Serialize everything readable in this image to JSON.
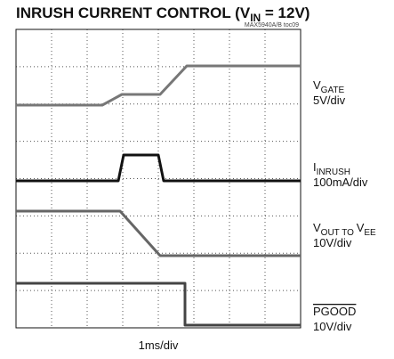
{
  "title": {
    "main": "INRUSH CURRENT CONTROL (V",
    "sub": "IN",
    "tail": " = 12V)"
  },
  "figure_id": "MAX5940A/B toc09",
  "traces": [
    {
      "label": [
        {
          "text": "V",
          "sub": false
        },
        {
          "text": "GATE",
          "sub": true
        }
      ],
      "scale": "5V/div"
    },
    {
      "label": [
        {
          "text": "I",
          "sub": false
        },
        {
          "text": "INRUSH",
          "sub": true
        }
      ],
      "scale": "100mA/div"
    },
    {
      "label": [
        {
          "text": "V",
          "sub": false
        },
        {
          "text": "OUT TO ",
          "sub": true
        },
        {
          "text": "V",
          "sub": false
        },
        {
          "text": "EE",
          "sub": true
        }
      ],
      "scale": "10V/div"
    },
    {
      "label": [
        {
          "text": "PGOOD",
          "sub": false,
          "overline": true
        }
      ],
      "scale": "10V/div"
    }
  ],
  "time_scale": "1ms/div"
}
